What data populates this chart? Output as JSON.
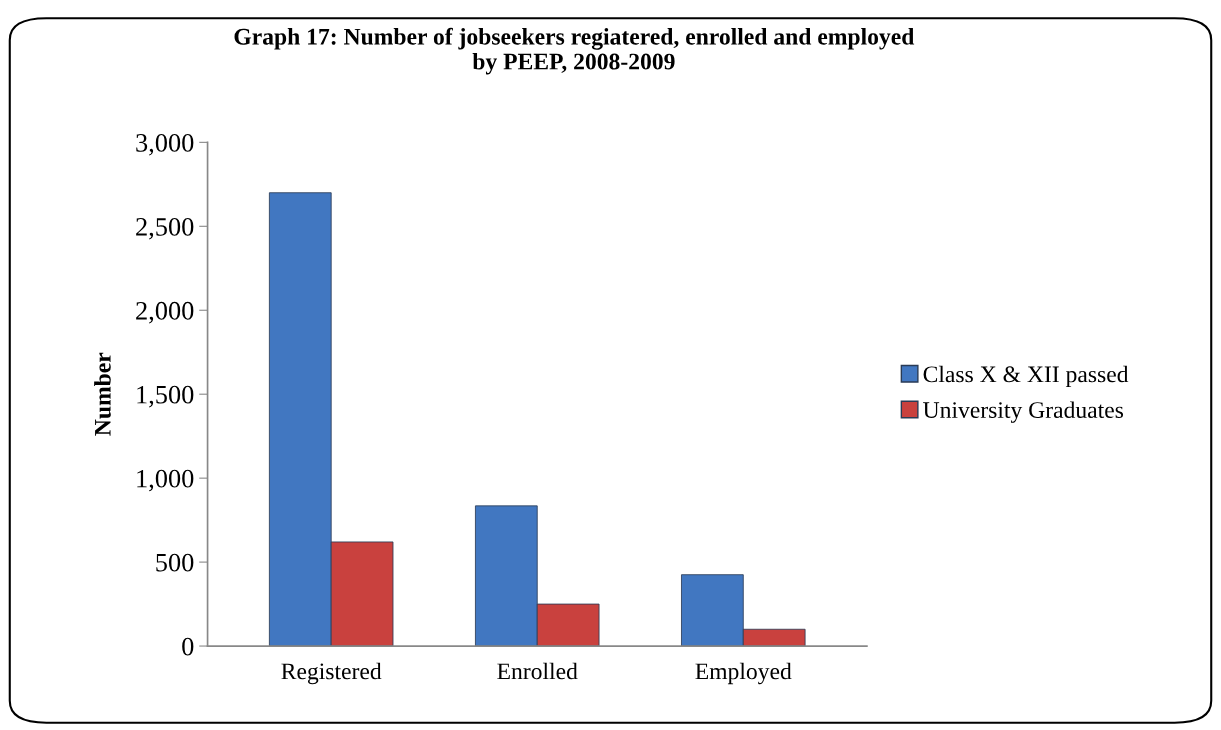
{
  "chart_data": {
    "type": "bar",
    "title": "Graph 17: Number of jobseekers regiatered, enrolled and employed\nby PEEP, 2008-2009",
    "ylabel": "Number",
    "categories": [
      "Registered",
      "Enrolled",
      "Employed"
    ],
    "series": [
      {
        "name": "Class X & XII passed",
        "color": "#4177c1",
        "values": [
          2700,
          835,
          425
        ]
      },
      {
        "name": "University Graduates",
        "color": "#c9413e",
        "values": [
          620,
          250,
          100
        ]
      }
    ],
    "ylim": [
      0,
      3000
    ],
    "yticks": [
      {
        "value": 0,
        "label": "0"
      },
      {
        "value": 500,
        "label": "500"
      },
      {
        "value": 1000,
        "label": "1,000"
      },
      {
        "value": 1500,
        "label": "1,500"
      },
      {
        "value": 2000,
        "label": "2,000"
      },
      {
        "value": 2500,
        "label": "2,500"
      },
      {
        "value": 3000,
        "label": "3,000"
      }
    ],
    "grid": false,
    "legend": "right"
  }
}
